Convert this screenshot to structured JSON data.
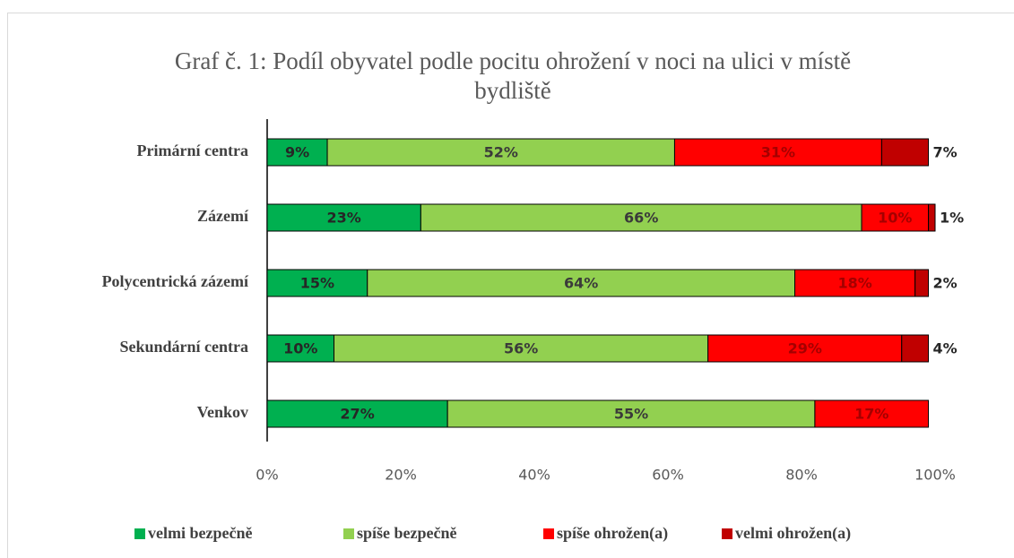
{
  "chart_data": {
    "type": "stacked-bar-horizontal",
    "title": "Graf č. 1: Podíl obyvatel podle pocitu ohrožení v noci na ulici v místě bydliště",
    "categories": [
      "Primární centra",
      "Zázemí",
      "Polycentrická zázemí",
      "Sekundární centra",
      "Venkov"
    ],
    "series": [
      {
        "name": "velmi bezpečně",
        "color": "#00b050",
        "values": [
          9,
          23,
          15,
          10,
          27
        ],
        "value_labels": [
          "9%",
          "23%",
          "15%",
          "10%",
          "27%"
        ]
      },
      {
        "name": "spíše bezpečně",
        "color": "#92d050",
        "values": [
          52,
          66,
          64,
          56,
          55
        ],
        "value_labels": [
          "52%",
          "66%",
          "64%",
          "56%",
          "55%"
        ]
      },
      {
        "name": "spíše ohrožen(a)",
        "color": "#ff0000",
        "values": [
          31,
          10,
          18,
          29,
          17
        ],
        "value_labels": [
          "31%",
          "10%",
          "18%",
          "29%",
          "17%"
        ]
      },
      {
        "name": "velmi ohrožen(a)",
        "color": "#c00000",
        "values": [
          7,
          1,
          2,
          4,
          null
        ],
        "value_labels": [
          "7%",
          "1%",
          "2%",
          "4%",
          null
        ]
      }
    ],
    "xlim": [
      0,
      100
    ],
    "xticks": [
      {
        "value": 0,
        "label": "0%"
      },
      {
        "value": 20,
        "label": "20%"
      },
      {
        "value": 40,
        "label": "40%"
      },
      {
        "value": 60,
        "label": "60%"
      },
      {
        "value": 80,
        "label": "80%"
      },
      {
        "value": 100,
        "label": "100%"
      }
    ],
    "legend": "bottom"
  }
}
